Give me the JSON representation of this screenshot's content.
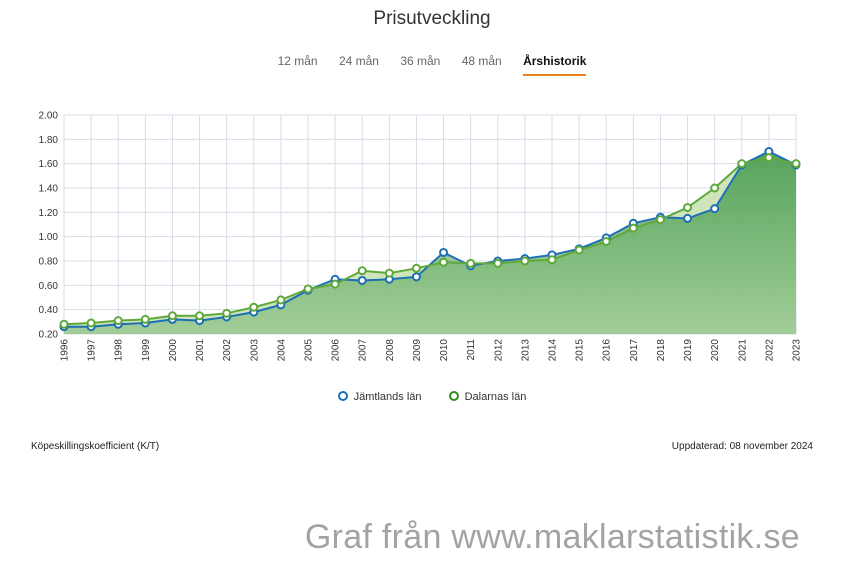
{
  "title": "Prisutveckling",
  "tabs": [
    {
      "label": "12 mån",
      "active": false
    },
    {
      "label": "24 mån",
      "active": false
    },
    {
      "label": "36 mån",
      "active": false
    },
    {
      "label": "48 mån",
      "active": false
    },
    {
      "label": "Årshistorik",
      "active": true
    }
  ],
  "accent_color": "#e8841e",
  "footer": {
    "metric_label": "Köpeskillingskoefficient (K/T)",
    "updated": "Uppdaterad: 08 november 2024"
  },
  "watermark": "Graf från www.maklarstatistik.se",
  "chart_data": {
    "type": "line",
    "title": "",
    "xlabel": "",
    "ylabel": "",
    "x": [
      1996,
      1997,
      1998,
      1999,
      2000,
      2001,
      2002,
      2003,
      2004,
      2005,
      2006,
      2007,
      2008,
      2009,
      2010,
      2011,
      2012,
      2013,
      2014,
      2015,
      2016,
      2017,
      2018,
      2019,
      2020,
      2021,
      2022,
      2023
    ],
    "ylim": [
      0.2,
      2.0
    ],
    "yticks": [
      0.2,
      0.4,
      0.6,
      0.8,
      1.0,
      1.2,
      1.4,
      1.6,
      1.8,
      2.0
    ],
    "ytick_labels": [
      "0.20",
      "0.40",
      "0.60",
      "0.80",
      "1.00",
      "1.20",
      "1.40",
      "1.60",
      "1.80",
      "2.00"
    ],
    "grid": true,
    "legend_position": "bottom",
    "series": [
      {
        "name": "Jämtlands län",
        "color": "#1f6fb4",
        "values": [
          0.26,
          0.26,
          0.28,
          0.29,
          0.32,
          0.31,
          0.34,
          0.38,
          0.44,
          0.56,
          0.65,
          0.64,
          0.65,
          0.67,
          0.87,
          0.76,
          0.8,
          0.82,
          0.85,
          0.9,
          0.99,
          1.11,
          1.16,
          1.15,
          1.23,
          1.59,
          1.7,
          1.59
        ]
      },
      {
        "name": "Dalarnas län",
        "color": "#5fa83a",
        "values": [
          0.28,
          0.29,
          0.31,
          0.32,
          0.35,
          0.35,
          0.37,
          0.42,
          0.48,
          0.57,
          0.61,
          0.72,
          0.7,
          0.74,
          0.79,
          0.78,
          0.78,
          0.8,
          0.81,
          0.89,
          0.96,
          1.07,
          1.14,
          1.24,
          1.4,
          1.6,
          1.65,
          1.6
        ]
      }
    ]
  }
}
